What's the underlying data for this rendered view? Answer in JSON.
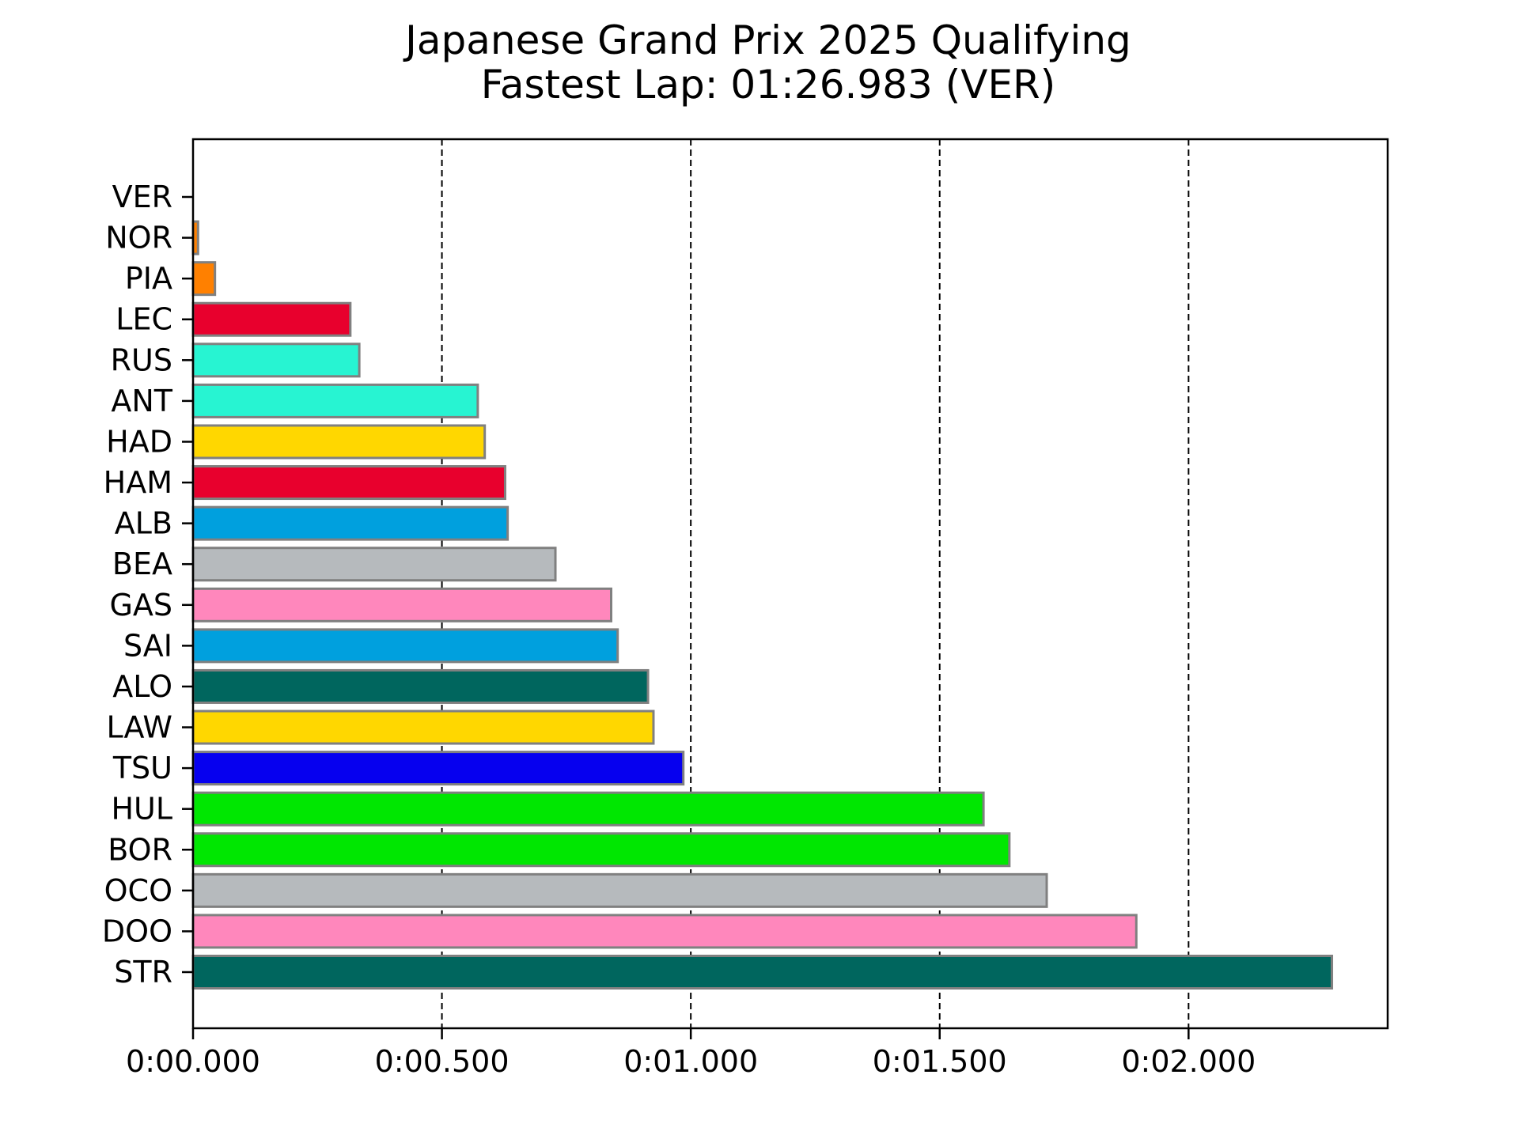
{
  "chart_data": {
    "type": "bar",
    "orientation": "horizontal",
    "title": "Japanese Grand Prix 2025 Qualifying",
    "subtitle": "Fastest Lap: 01:26.983 (VER)",
    "xlabel": "",
    "ylabel": "",
    "xlim": [
      0,
      2.4
    ],
    "xticks": [
      0,
      0.5,
      1.0,
      1.5,
      2.0
    ],
    "xtick_labels": [
      "0:00.000",
      "0:00.500",
      "0:01.000",
      "0:01.500",
      "0:02.000"
    ],
    "grid": "x-axis vertical dashed",
    "legend": "none",
    "categories": [
      "VER",
      "NOR",
      "PIA",
      "LEC",
      "RUS",
      "ANT",
      "HAD",
      "HAM",
      "ALB",
      "BEA",
      "GAS",
      "SAI",
      "ALO",
      "LAW",
      "TSU",
      "HUL",
      "BOR",
      "OCO",
      "DOO",
      "STR"
    ],
    "values": [
      0.0,
      0.01,
      0.044,
      0.316,
      0.334,
      0.572,
      0.586,
      0.627,
      0.632,
      0.728,
      0.84,
      0.853,
      0.914,
      0.925,
      0.985,
      1.588,
      1.64,
      1.715,
      1.895,
      2.288
    ],
    "colors": [
      "#0600EF",
      "#FF8000",
      "#FF8000",
      "#E8002D",
      "#27F4D2",
      "#27F4D2",
      "#FFD700",
      "#E8002D",
      "#00A0DE",
      "#B6BABD",
      "#FF87BC",
      "#00A0DE",
      "#00665E",
      "#FFD700",
      "#0600EF",
      "#00E701",
      "#00E701",
      "#B6BABD",
      "#FF87BC",
      "#00665E"
    ],
    "bar_edge_color": "#808080"
  }
}
